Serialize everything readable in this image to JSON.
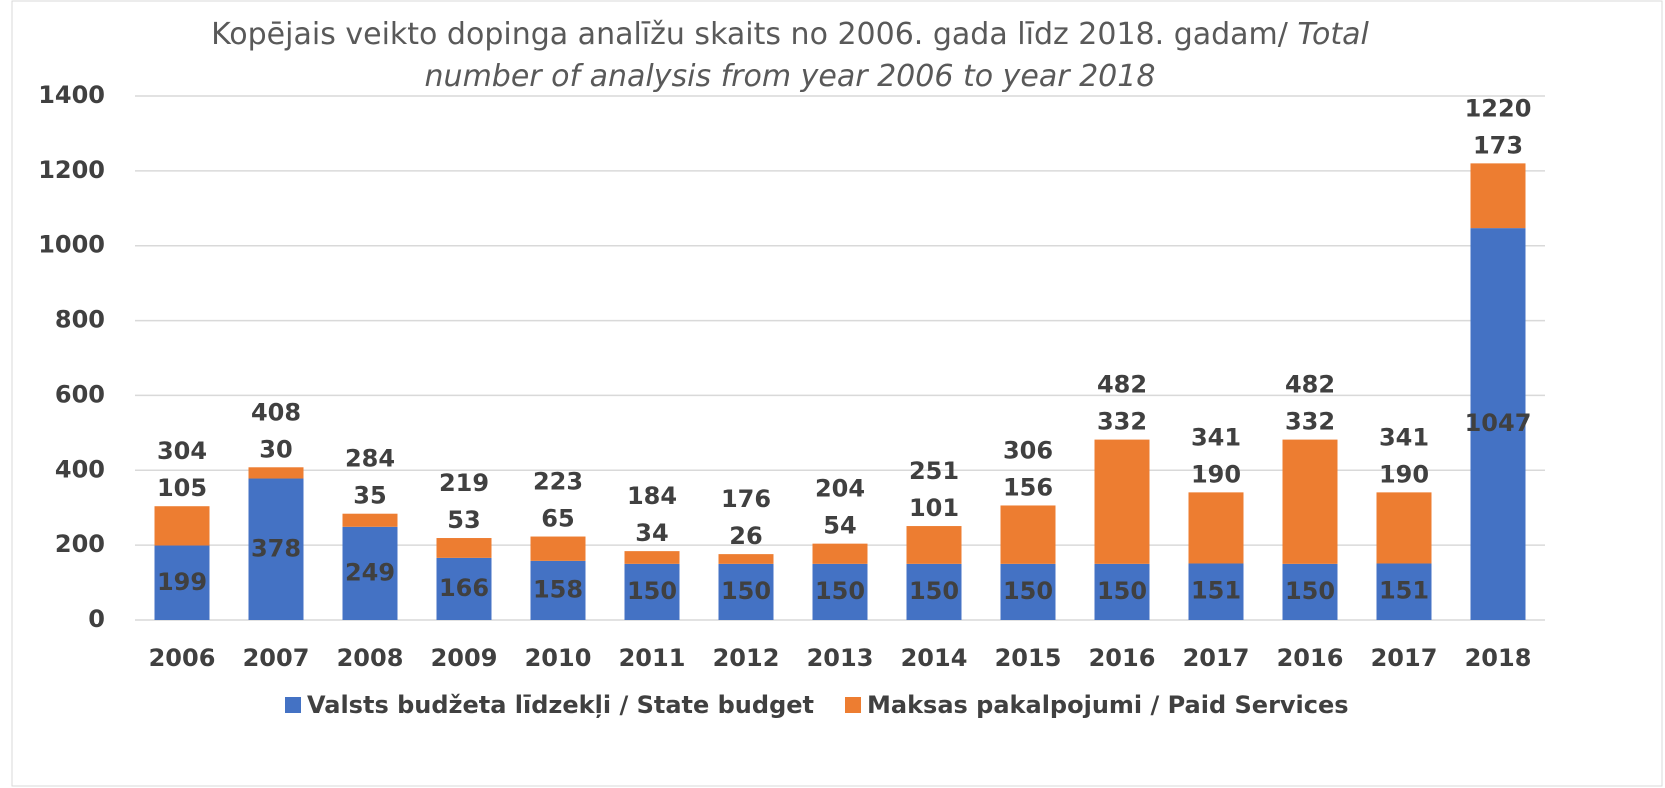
{
  "chart_data": {
    "type": "stacked_bar",
    "title": {
      "text": "Kopējais veikto dopinga analīžu skaits no 2006. gada līdz 2018. gadam/",
      "italic": "Total number of analysis from year 2006 to year 2018"
    },
    "categories": [
      "2006",
      "2007",
      "2008",
      "2009",
      "2010",
      "2011",
      "2012",
      "2013",
      "2014",
      "2015",
      "2016",
      "2017",
      "2016",
      "2017",
      "2018"
    ],
    "series": [
      {
        "name": "Valsts budžeta līdzekļi / State budget",
        "color": "#4472c4",
        "values": [
          199,
          378,
          249,
          166,
          158,
          150,
          150,
          150,
          150,
          150,
          150,
          151,
          150,
          151,
          1047
        ]
      },
      {
        "name": "Maksas pakalpojumi / Paid Services",
        "color": "#ed7d31",
        "values": [
          105,
          30,
          35,
          53,
          65,
          34,
          26,
          54,
          101,
          156,
          332,
          190,
          332,
          190,
          173
        ]
      }
    ],
    "totals": [
      304,
      408,
      284,
      219,
      223,
      184,
      176,
      204,
      251,
      306,
      482,
      341,
      482,
      341,
      1220
    ],
    "ylim": [
      0,
      1400
    ],
    "yticks": [
      0,
      200,
      400,
      600,
      800,
      1000,
      1200,
      1400
    ],
    "grid": true,
    "legend": "bottom"
  }
}
